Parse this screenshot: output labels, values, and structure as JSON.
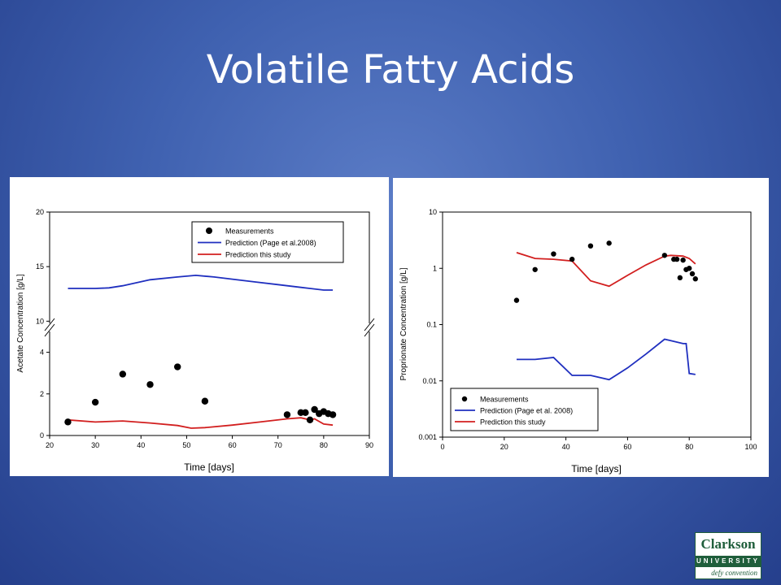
{
  "slide": {
    "title": "Volatile Fatty Acids"
  },
  "logo": {
    "name": "Clarkson",
    "sub": "UNIVERSITY",
    "tagline": "defy convention"
  },
  "colors": {
    "measurement": "#000000",
    "page_prediction": "#1f2fbf",
    "this_study": "#d21f1f"
  },
  "chart_data": [
    {
      "type": "line",
      "axis_break": true,
      "xlabel": "Time [days]",
      "ylabel": "Acetate Concentration [g/L]",
      "xlim": [
        20,
        90
      ],
      "xticks": [
        20,
        30,
        40,
        50,
        60,
        70,
        80,
        90
      ],
      "ylim_lower": [
        0,
        5
      ],
      "yticks_lower": [
        0,
        2,
        4
      ],
      "ylim_upper": [
        9.8,
        20
      ],
      "yticks_upper": [
        10,
        15,
        20
      ],
      "legend_position": "top-right",
      "series": [
        {
          "name": "Measurements",
          "kind": "points",
          "x": [
            24,
            30,
            36,
            42,
            48,
            54,
            72,
            75,
            76,
            77,
            78,
            79,
            80,
            81,
            82
          ],
          "y": [
            0.65,
            1.6,
            2.95,
            2.45,
            3.3,
            1.65,
            1.0,
            1.1,
            1.1,
            0.75,
            1.25,
            1.05,
            1.15,
            1.05,
            1.0
          ]
        },
        {
          "name": "Prediction (Page et al.2008)",
          "kind": "line",
          "x": [
            24,
            30,
            33,
            36,
            42,
            48,
            52,
            56,
            60,
            65,
            70,
            75,
            80,
            82
          ],
          "y": [
            13.0,
            13.0,
            13.05,
            13.25,
            13.8,
            14.05,
            14.2,
            14.05,
            13.85,
            13.6,
            13.35,
            13.1,
            12.85,
            12.85
          ]
        },
        {
          "name": "Prediction this study",
          "kind": "line",
          "x": [
            24,
            30,
            36,
            42,
            48,
            51,
            54,
            60,
            66,
            72,
            75,
            77,
            78,
            80,
            82
          ],
          "y": [
            0.75,
            0.65,
            0.7,
            0.6,
            0.48,
            0.35,
            0.38,
            0.5,
            0.65,
            0.8,
            0.85,
            0.75,
            0.8,
            0.55,
            0.5
          ]
        }
      ]
    },
    {
      "type": "line",
      "yscale": "log",
      "xlabel": "Time [days]",
      "ylabel": "Proprionate Concentration [g/L]",
      "xlim": [
        0,
        100
      ],
      "xticks": [
        0,
        20,
        40,
        60,
        80,
        100
      ],
      "ylim": [
        0.001,
        10
      ],
      "yticks": [
        "0.001",
        "0.01",
        "0.1",
        "1",
        "10"
      ],
      "legend_position": "bottom-left",
      "series": [
        {
          "name": "Measurements",
          "kind": "points",
          "x": [
            24,
            30,
            36,
            42,
            48,
            54,
            72,
            75,
            76,
            77,
            78,
            79,
            80,
            81,
            82
          ],
          "y": [
            0.27,
            0.95,
            1.8,
            1.45,
            2.5,
            2.8,
            1.7,
            1.45,
            1.45,
            0.68,
            1.4,
            0.95,
            1.0,
            0.8,
            0.65
          ]
        },
        {
          "name": "Prediction (Page et al. 2008)",
          "kind": "line",
          "x": [
            24,
            30,
            36,
            42,
            48,
            54,
            60,
            66,
            72,
            74,
            78,
            79,
            80,
            82
          ],
          "y": [
            0.024,
            0.024,
            0.026,
            0.0125,
            0.0125,
            0.0105,
            0.017,
            0.03,
            0.055,
            0.052,
            0.046,
            0.046,
            0.0135,
            0.013
          ]
        },
        {
          "name": "Prediction this study",
          "kind": "line",
          "x": [
            24,
            30,
            36,
            42,
            48,
            54,
            60,
            66,
            72,
            74,
            78,
            80,
            82
          ],
          "y": [
            1.9,
            1.5,
            1.45,
            1.35,
            0.6,
            0.48,
            0.75,
            1.15,
            1.65,
            1.7,
            1.65,
            1.5,
            1.2
          ]
        }
      ]
    }
  ]
}
